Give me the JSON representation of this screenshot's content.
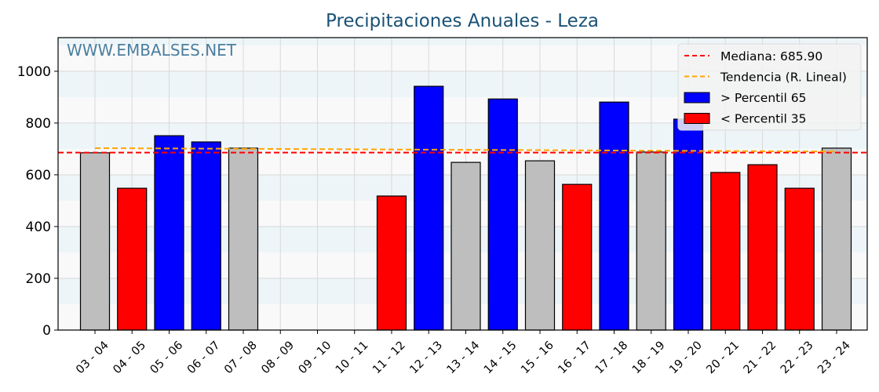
{
  "chart_data": {
    "type": "bar",
    "title": "Precipitaciones Anuales - Leza",
    "watermark": "WWW.EMBALSES.NET",
    "xlabel": "",
    "ylabel": "",
    "ylim": [
      0,
      1130
    ],
    "yticks": [
      0,
      200,
      400,
      600,
      800,
      1000
    ],
    "grid": true,
    "legend_position": "upper right",
    "categories": [
      "03 - 04",
      "04 - 05",
      "05 - 06",
      "06 - 07",
      "07 - 08",
      "08 - 09",
      "09 - 10",
      "10 - 11",
      "11 - 12",
      "12 - 13",
      "13 - 14",
      "14 - 15",
      "15 - 16",
      "16 - 17",
      "17 - 18",
      "18 - 19",
      "19 - 20",
      "20 - 21",
      "21 - 22",
      "22 - 23",
      "23 - 24"
    ],
    "values": [
      685,
      548,
      751,
      727,
      703,
      null,
      null,
      null,
      518,
      942,
      648,
      893,
      654,
      563,
      881,
      688,
      815,
      609,
      639,
      548,
      703
    ],
    "bar_class": [
      "mid",
      "low",
      "high",
      "high",
      "mid",
      null,
      null,
      null,
      "low",
      "high",
      "mid",
      "high",
      "mid",
      "low",
      "high",
      "mid",
      "high",
      "low",
      "low",
      "low",
      "mid"
    ],
    "median": 685.9,
    "trend": {
      "start": 703,
      "end": 690
    },
    "legend": [
      {
        "label": "Mediana: 685.90",
        "type": "dashed-line",
        "color": "#ff0000"
      },
      {
        "label": "Tendencia (R. Lineal)",
        "type": "dashed-line",
        "color": "#ffa500"
      },
      {
        "label": " > Percentil 65",
        "type": "patch",
        "color": "#0000ff"
      },
      {
        "label": " < Percentil 35",
        "type": "patch",
        "color": "#ff0000"
      }
    ],
    "colors": {
      "high": "#0000ff",
      "low": "#ff0000",
      "mid": "#bebebe",
      "median": "#ff0000",
      "trend": "#ffa500",
      "title": "#1a5276",
      "watermark": "#4a7fa0"
    }
  }
}
